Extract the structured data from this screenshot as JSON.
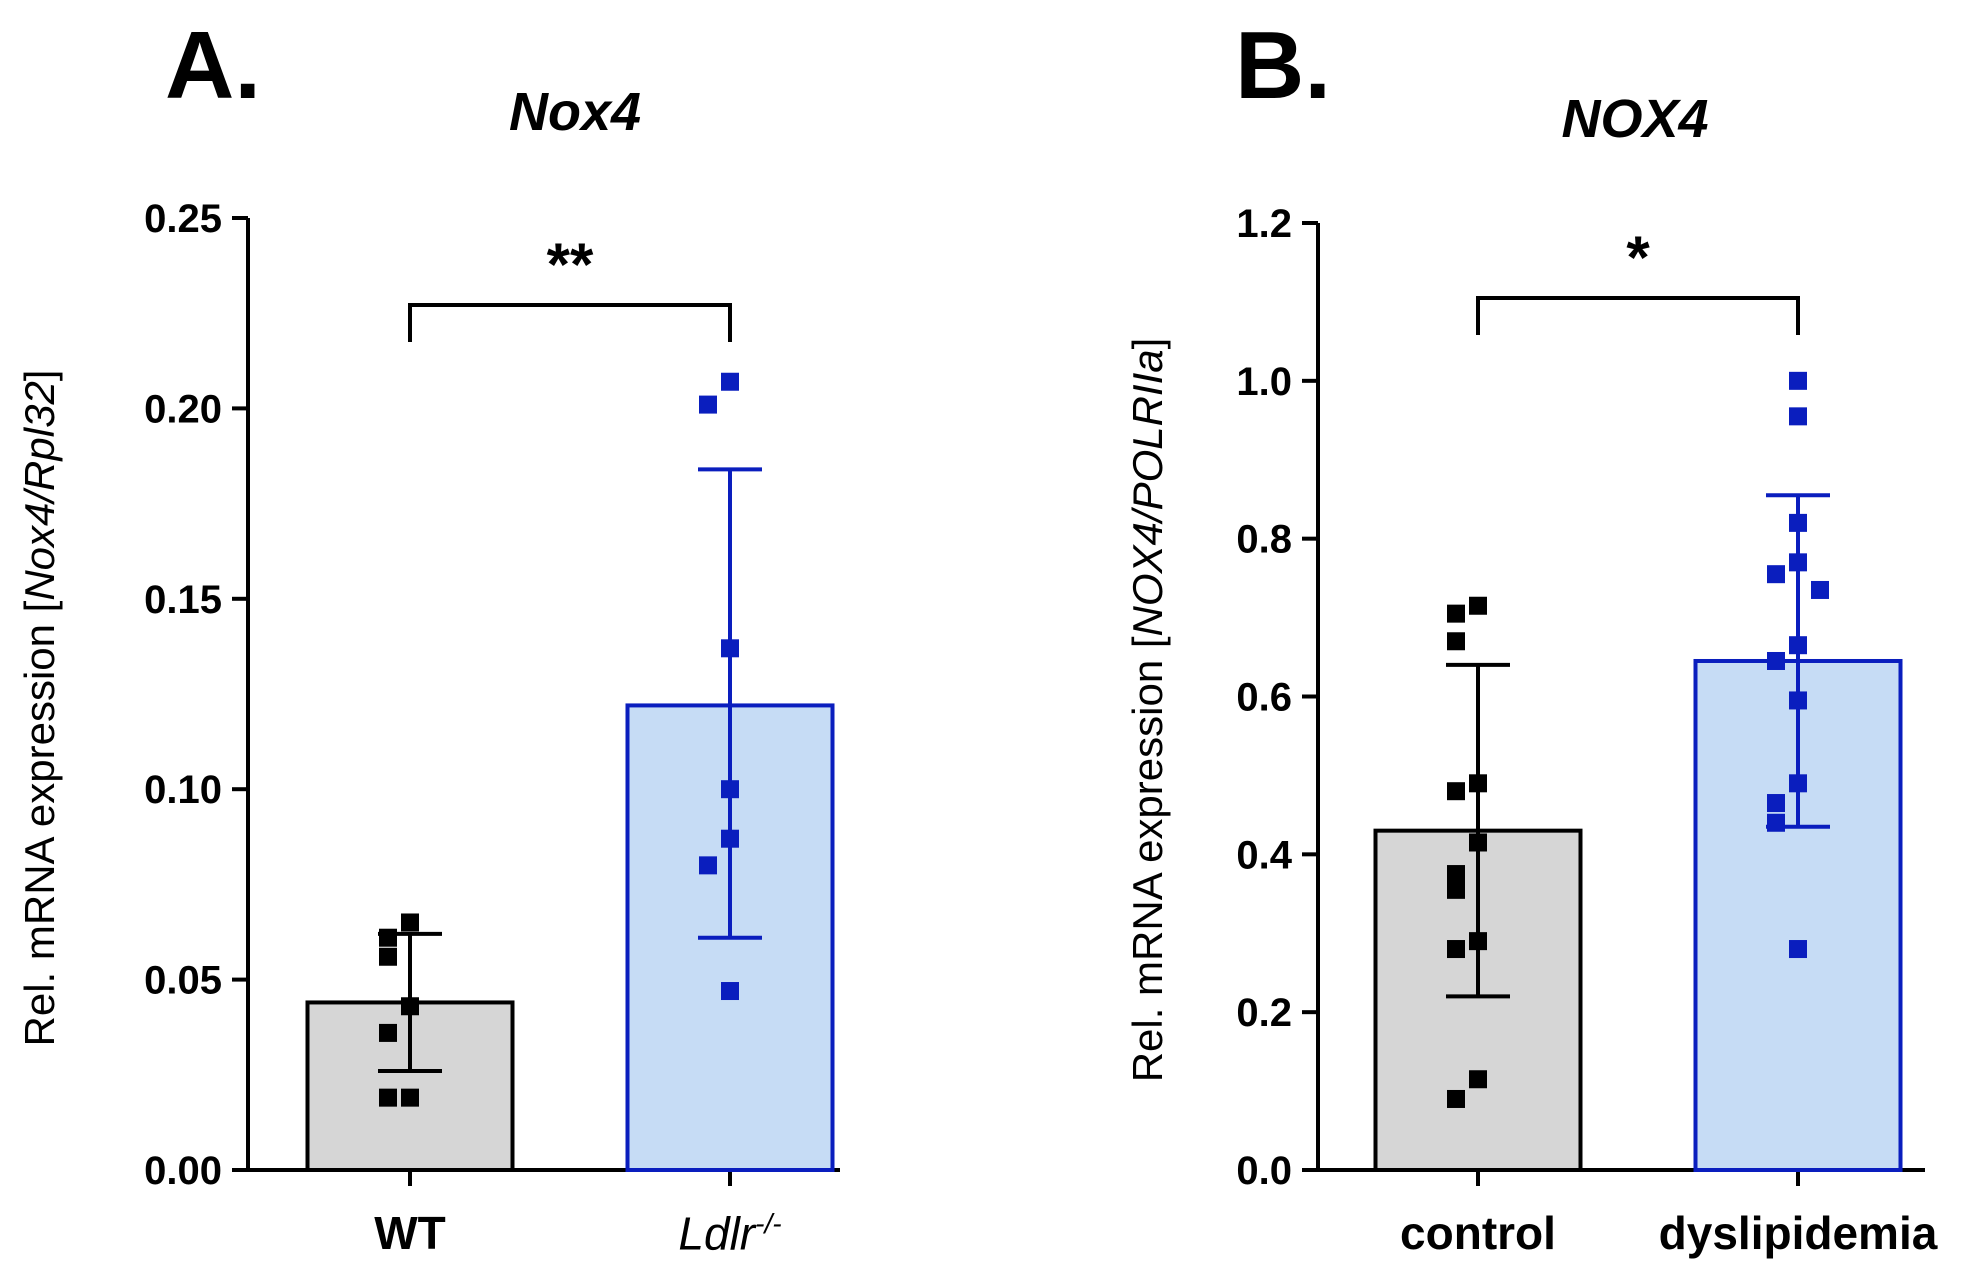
{
  "colors": {
    "control_fill": "#d6d6d6",
    "control_stroke": "#000000",
    "treated_fill": "#c6dcf5",
    "treated_stroke": "#0a1ebe"
  },
  "chart_data": [
    {
      "type": "bar",
      "panel_label": "A.",
      "title": "Nox4",
      "ylabel_prefix": "Rel. mRNA expression [",
      "ylabel_italic": "Nox4/Rpl32",
      "ylabel_suffix": "]",
      "ylim": [
        0,
        0.25
      ],
      "yticks": [
        0,
        0.05,
        0.1,
        0.15,
        0.2,
        0.25
      ],
      "ytick_labels": [
        "0.00",
        "0.05",
        "0.10",
        "0.15",
        "0.20",
        "0.25"
      ],
      "categories": [
        {
          "label": "WT",
          "italic": false,
          "sup": ""
        },
        {
          "label": "Ldlr",
          "italic": true,
          "sup": "-/-"
        }
      ],
      "series": [
        {
          "name": "WT",
          "mean": 0.044,
          "err_low": 0.026,
          "err_high": 0.062,
          "points": [
            0.065,
            0.061,
            0.056,
            0.043,
            0.036,
            0.019,
            0.019
          ]
        },
        {
          "name": "Ldlr-/-",
          "mean": 0.122,
          "err_low": 0.061,
          "err_high": 0.184,
          "points": [
            0.207,
            0.201,
            0.137,
            0.1,
            0.087,
            0.08,
            0.047
          ]
        }
      ],
      "significance": "**"
    },
    {
      "type": "bar",
      "panel_label": "B.",
      "title": "NOX4",
      "ylabel_prefix": "Rel. mRNA expression [",
      "ylabel_italic": "NOX4/POLRIIa",
      "ylabel_suffix": "]",
      "ylim": [
        0,
        1.2
      ],
      "yticks": [
        0,
        0.2,
        0.4,
        0.6,
        0.8,
        1.0,
        1.2
      ],
      "ytick_labels": [
        "0.0",
        "0.2",
        "0.4",
        "0.6",
        "0.8",
        "1.0",
        "1.2"
      ],
      "categories": [
        {
          "label": "control",
          "italic": false,
          "sup": ""
        },
        {
          "label": "dyslipidemia",
          "italic": false,
          "sup": ""
        }
      ],
      "series": [
        {
          "name": "control",
          "mean": 0.43,
          "err_low": 0.22,
          "err_high": 0.64,
          "points": [
            0.715,
            0.705,
            0.67,
            0.49,
            0.48,
            0.415,
            0.375,
            0.355,
            0.29,
            0.28,
            0.115,
            0.09
          ]
        },
        {
          "name": "dyslipidemia",
          "mean": 0.645,
          "err_low": 0.435,
          "err_high": 0.855,
          "points": [
            1.0,
            0.955,
            0.82,
            0.77,
            0.755,
            0.735,
            0.665,
            0.645,
            0.595,
            0.49,
            0.465,
            0.44,
            0.28
          ]
        }
      ],
      "significance": "*"
    }
  ]
}
